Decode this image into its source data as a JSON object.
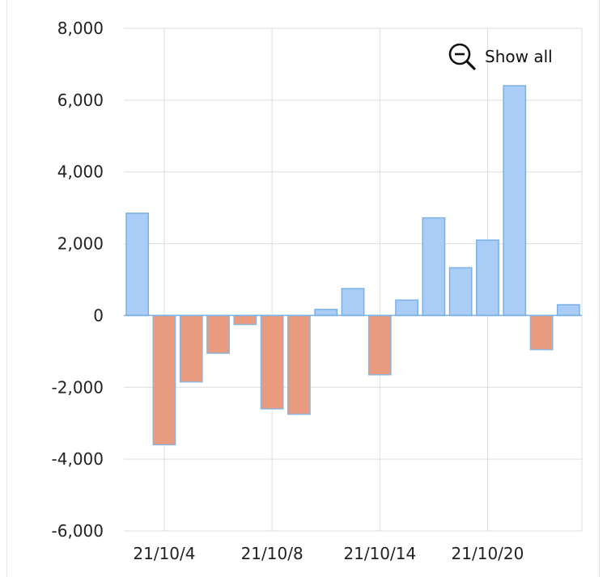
{
  "toolbar": {
    "show_all_label": "Show all",
    "show_all_icon": "zoom-out-icon"
  },
  "colors": {
    "positive_fill": "#a9cdf7",
    "positive_stroke": "#7ab0e3",
    "negative_fill": "#e99b80",
    "negative_stroke": "#8fb3d9",
    "grid": "#dddddd",
    "zero_line": "#7ab0e3"
  },
  "chart_data": {
    "type": "bar",
    "title": "",
    "xlabel": "",
    "ylabel": "",
    "ylim": [
      -6000,
      8000
    ],
    "y_ticks": [
      8000,
      6000,
      4000,
      2000,
      0,
      -2000,
      -4000,
      -6000
    ],
    "y_tick_labels": [
      "8,000",
      "6,000",
      "4,000",
      "2,000",
      "0",
      "-2,000",
      "-4,000",
      "-6,000"
    ],
    "x_tick_labels": [
      "21/10/4",
      "21/10/8",
      "21/10/14",
      "21/10/20"
    ],
    "x_tick_index": [
      1,
      5,
      9,
      13
    ],
    "grid": true,
    "values": [
      2850,
      -3600,
      -1850,
      -1050,
      -250,
      -2600,
      -2750,
      170,
      750,
      -1650,
      430,
      2720,
      1330,
      2100,
      6400,
      -950,
      300
    ]
  }
}
